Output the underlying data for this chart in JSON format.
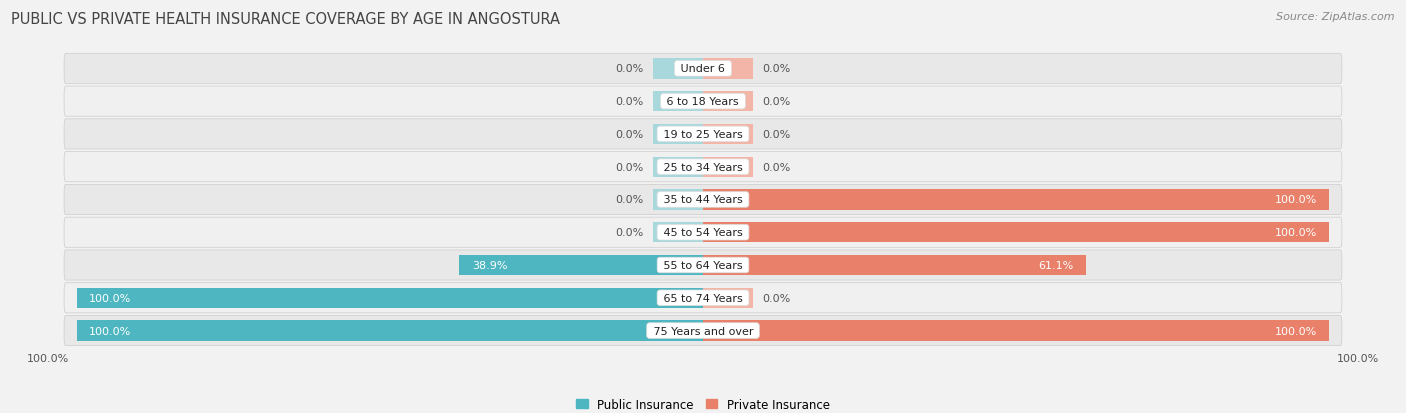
{
  "title": "PUBLIC VS PRIVATE HEALTH INSURANCE COVERAGE BY AGE IN ANGOSTURA",
  "source": "Source: ZipAtlas.com",
  "categories": [
    "Under 6",
    "6 to 18 Years",
    "19 to 25 Years",
    "25 to 34 Years",
    "35 to 44 Years",
    "45 to 54 Years",
    "55 to 64 Years",
    "65 to 74 Years",
    "75 Years and over"
  ],
  "public_values": [
    0.0,
    0.0,
    0.0,
    0.0,
    0.0,
    0.0,
    38.9,
    100.0,
    100.0
  ],
  "private_values": [
    0.0,
    0.0,
    0.0,
    0.0,
    100.0,
    100.0,
    61.1,
    0.0,
    100.0
  ],
  "public_color": "#4DB6C0",
  "public_color_light": "#A8D8DC",
  "private_color": "#E8806A",
  "private_color_light": "#F2B5A8",
  "label_color_dark": "#555555",
  "label_color_light": "#ffffff",
  "bg_color": "#f2f2f2",
  "row_bg_even": "#e8e8e8",
  "row_bg_odd": "#f0f0f0",
  "title_fontsize": 10.5,
  "source_fontsize": 8,
  "label_fontsize": 8,
  "category_fontsize": 8,
  "legend_fontsize": 8.5,
  "axis_label_fontsize": 8,
  "axis_left_label": "100.0%",
  "axis_right_label": "100.0%",
  "bar_height": 0.62,
  "stub_size": 8.0,
  "max_val": 100.0
}
